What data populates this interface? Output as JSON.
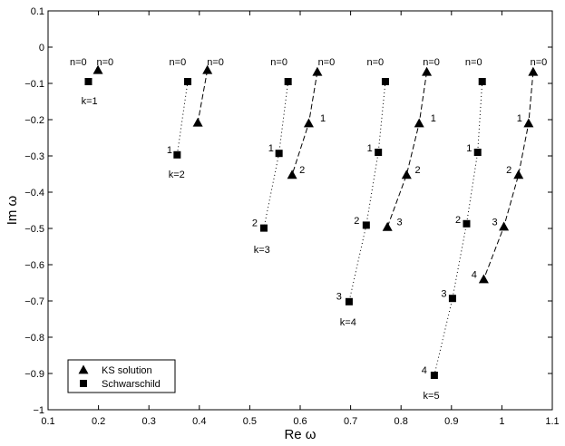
{
  "chart_data": {
    "type": "scatter",
    "xlabel": "Re ω",
    "ylabel": "Im ω",
    "xlim": [
      0.1,
      1.1
    ],
    "ylim": [
      -1,
      0.1
    ],
    "xticks": [
      0.1,
      0.2,
      0.3,
      0.4,
      0.5,
      0.6,
      0.7,
      0.8,
      0.9,
      1,
      1.1
    ],
    "yticks": [
      -1,
      -0.9,
      -0.8,
      -0.7,
      -0.6,
      -0.5,
      -0.4,
      -0.3,
      -0.2,
      -0.1,
      0,
      0.1
    ],
    "xtick_labels": [
      "0.1",
      "0.2",
      "0.3",
      "0.4",
      "0.5",
      "0.6",
      "0.7",
      "0.8",
      "0.9",
      "1",
      "1.1"
    ],
    "ytick_labels": [
      "−1",
      "−0.9",
      "−0.8",
      "−0.7",
      "−0.6",
      "−0.5",
      "−0.4",
      "−0.3",
      "−0.2",
      "−0.1",
      "0",
      "0.1"
    ],
    "grid": false,
    "legend_position": "bottom-left",
    "series": [
      {
        "name": "KS solution",
        "marker": "triangle",
        "line_style": "dashed",
        "color": "#000000",
        "groups": [
          {
            "k": 1,
            "points": [
              {
                "x": 0.199,
                "y": -0.063
              }
            ]
          },
          {
            "k": 2,
            "points": [
              {
                "x": 0.416,
                "y": -0.063
              },
              {
                "x": 0.397,
                "y": -0.208
              }
            ]
          },
          {
            "k": 3,
            "points": [
              {
                "x": 0.634,
                "y": -0.068
              },
              {
                "x": 0.617,
                "y": -0.21
              },
              {
                "x": 0.584,
                "y": -0.352
              }
            ]
          },
          {
            "k": 4,
            "points": [
              {
                "x": 0.851,
                "y": -0.068
              },
              {
                "x": 0.836,
                "y": -0.21
              },
              {
                "x": 0.811,
                "y": -0.352
              },
              {
                "x": 0.773,
                "y": -0.496
              }
            ]
          },
          {
            "k": 5,
            "points": [
              {
                "x": 1.062,
                "y": -0.068
              },
              {
                "x": 1.053,
                "y": -0.21
              },
              {
                "x": 1.033,
                "y": -0.352
              },
              {
                "x": 1.004,
                "y": -0.495
              },
              {
                "x": 0.964,
                "y": -0.64
              }
            ]
          }
        ]
      },
      {
        "name": "Schwarschild",
        "marker": "square",
        "line_style": "dotted",
        "color": "#000000",
        "groups": [
          {
            "k": 1,
            "points": [
              {
                "x": 0.18,
                "y": -0.095
              }
            ]
          },
          {
            "k": 2,
            "points": [
              {
                "x": 0.377,
                "y": -0.095
              },
              {
                "x": 0.356,
                "y": -0.297
              }
            ]
          },
          {
            "k": 3,
            "points": [
              {
                "x": 0.576,
                "y": -0.095
              },
              {
                "x": 0.558,
                "y": -0.293
              },
              {
                "x": 0.528,
                "y": -0.499
              }
            ]
          },
          {
            "k": 4,
            "points": [
              {
                "x": 0.769,
                "y": -0.095
              },
              {
                "x": 0.755,
                "y": -0.29
              },
              {
                "x": 0.731,
                "y": -0.491
              },
              {
                "x": 0.697,
                "y": -0.702
              }
            ]
          },
          {
            "k": 5,
            "points": [
              {
                "x": 0.961,
                "y": -0.095
              },
              {
                "x": 0.952,
                "y": -0.29
              },
              {
                "x": 0.93,
                "y": -0.487
              },
              {
                "x": 0.902,
                "y": -0.693
              },
              {
                "x": 0.866,
                "y": -0.905
              }
            ]
          }
        ]
      }
    ],
    "annotations": [
      {
        "text": "n=0",
        "x": 0.16,
        "y": -0.04
      },
      {
        "text": "n=0",
        "x": 0.213,
        "y": -0.04
      },
      {
        "text": "k=1",
        "x": 0.182,
        "y": -0.147
      },
      {
        "text": "n=0",
        "x": 0.357,
        "y": -0.04
      },
      {
        "text": "n=0",
        "x": 0.432,
        "y": -0.04
      },
      {
        "text": "1",
        "x": 0.341,
        "y": -0.283
      },
      {
        "text": "k=2",
        "x": 0.355,
        "y": -0.35
      },
      {
        "text": "n=0",
        "x": 0.558,
        "y": -0.04
      },
      {
        "text": "n=0",
        "x": 0.652,
        "y": -0.04
      },
      {
        "text": "1",
        "x": 0.542,
        "y": -0.277
      },
      {
        "text": "1",
        "x": 0.645,
        "y": -0.195
      },
      {
        "text": "2",
        "x": 0.51,
        "y": -0.484
      },
      {
        "text": "2",
        "x": 0.604,
        "y": -0.338
      },
      {
        "text": "k=3",
        "x": 0.524,
        "y": -0.557
      },
      {
        "text": "n=0",
        "x": 0.749,
        "y": -0.04
      },
      {
        "text": "n=0",
        "x": 0.86,
        "y": -0.04
      },
      {
        "text": "1",
        "x": 0.738,
        "y": -0.277
      },
      {
        "text": "1",
        "x": 0.864,
        "y": -0.195
      },
      {
        "text": "2",
        "x": 0.712,
        "y": -0.477
      },
      {
        "text": "2",
        "x": 0.833,
        "y": -0.338
      },
      {
        "text": "3",
        "x": 0.677,
        "y": -0.686
      },
      {
        "text": "3",
        "x": 0.797,
        "y": -0.481
      },
      {
        "text": "k=4",
        "x": 0.695,
        "y": -0.757
      },
      {
        "text": "n=0",
        "x": 0.944,
        "y": -0.04
      },
      {
        "text": "n=0",
        "x": 1.073,
        "y": -0.04
      },
      {
        "text": "1",
        "x": 0.935,
        "y": -0.277
      },
      {
        "text": "1",
        "x": 1.035,
        "y": -0.195
      },
      {
        "text": "2",
        "x": 0.913,
        "y": -0.475
      },
      {
        "text": "2",
        "x": 1.014,
        "y": -0.338
      },
      {
        "text": "3",
        "x": 0.885,
        "y": -0.679
      },
      {
        "text": "3",
        "x": 0.986,
        "y": -0.481
      },
      {
        "text": "4",
        "x": 0.846,
        "y": -0.89
      },
      {
        "text": "4",
        "x": 0.945,
        "y": -0.626
      },
      {
        "text": "k=5",
        "x": 0.86,
        "y": -0.96
      }
    ]
  }
}
